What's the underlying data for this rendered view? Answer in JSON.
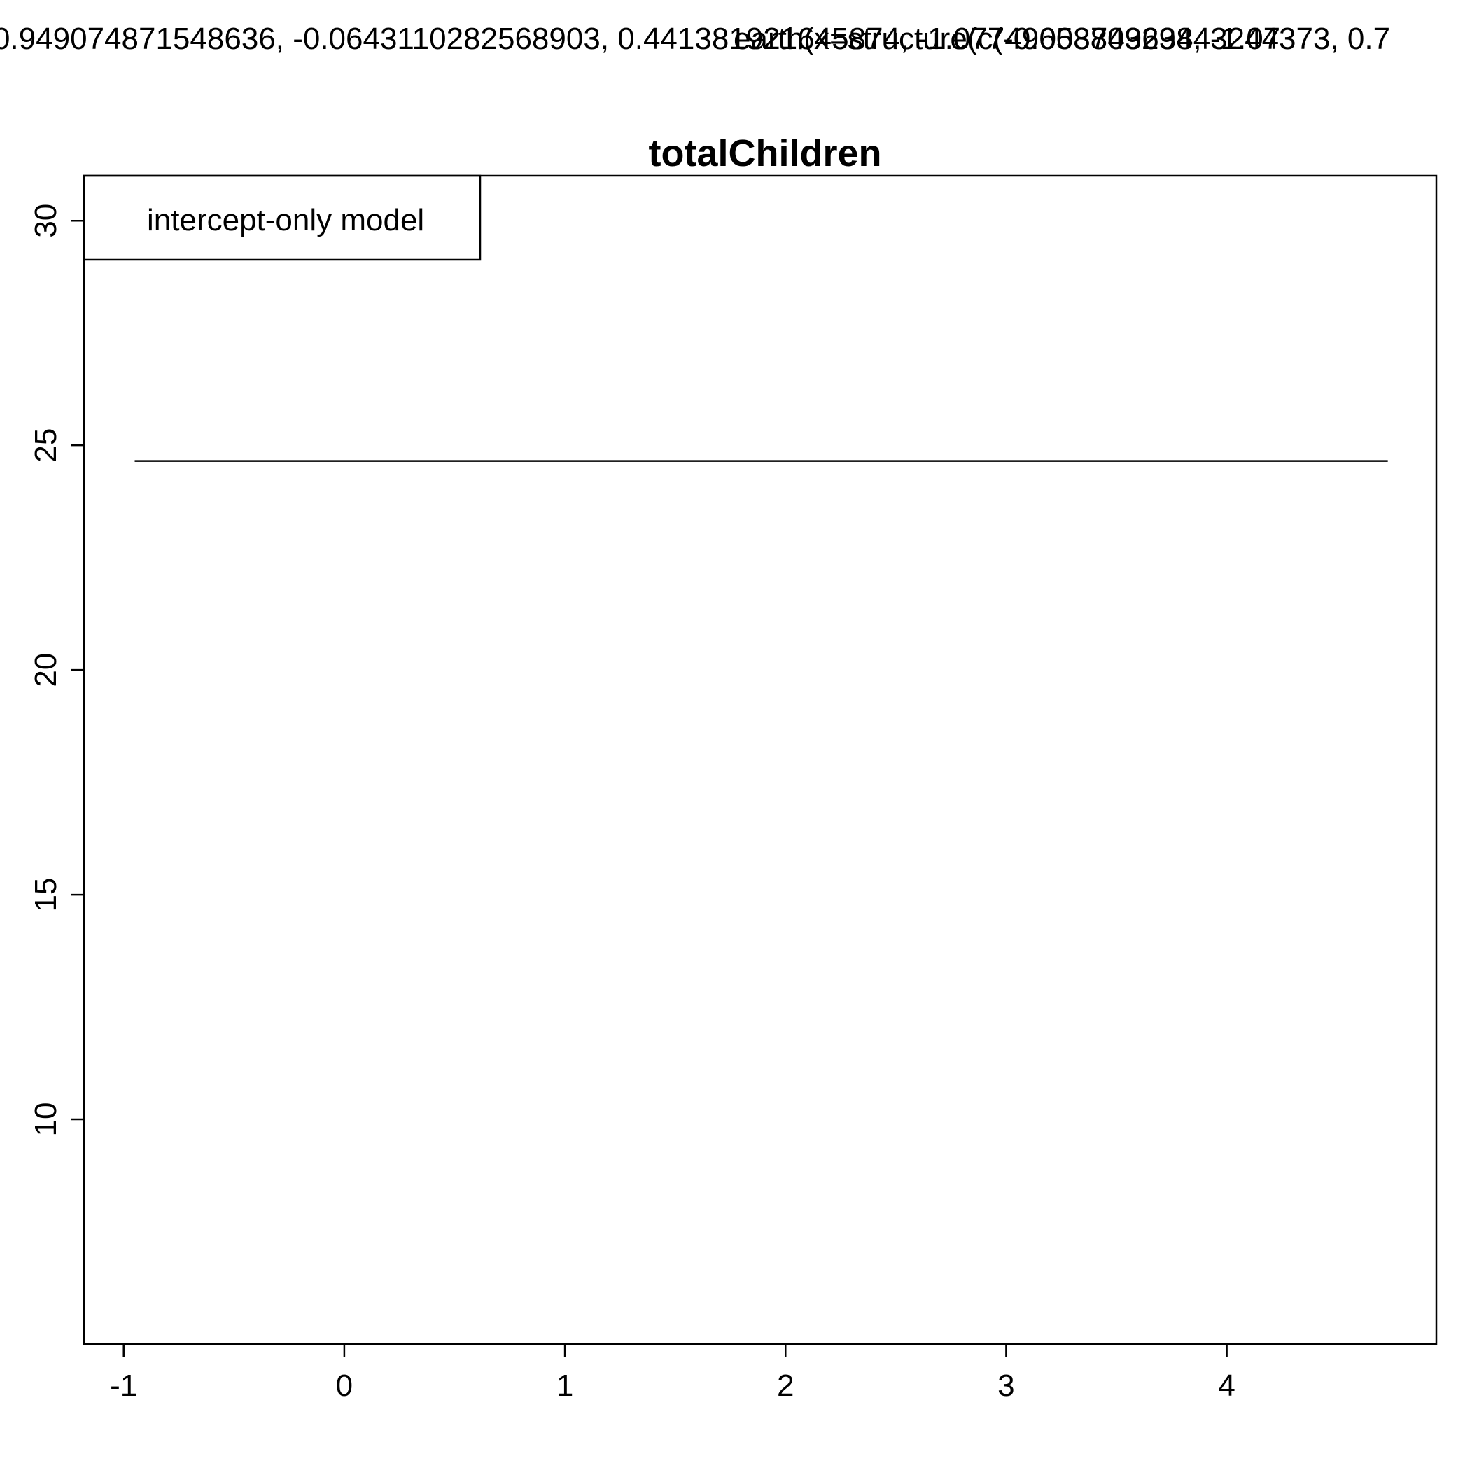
{
  "header": {
    "left_text": "0.949074871548636, -0.0643110282568903, 0.441381921645874, -1.07749658803294, -1.07",
    "right_text": "earth(x=structure(c(-0.00374963843244373, 0.7"
  },
  "chart_data": {
    "type": "line",
    "title": "totalChildren",
    "xlabel": "",
    "ylabel": "",
    "xlim": [
      -1.18,
      4.95
    ],
    "ylim": [
      5.0,
      31.0
    ],
    "x_ticks": [
      -1,
      0,
      1,
      2,
      3,
      4
    ],
    "x_tick_labels": [
      "-1",
      "0",
      "1",
      "2",
      "3",
      "4"
    ],
    "y_ticks": [
      10,
      15,
      20,
      25,
      30
    ],
    "y_tick_labels": [
      "10",
      "15",
      "20",
      "25",
      "30"
    ],
    "series": [
      {
        "x": [
          -0.95,
          4.73
        ],
        "y": [
          24.65,
          24.65
        ],
        "color": "#000000"
      }
    ],
    "legend": {
      "position": "top-left",
      "entries": [
        "intercept-only model"
      ]
    },
    "grid": false
  }
}
